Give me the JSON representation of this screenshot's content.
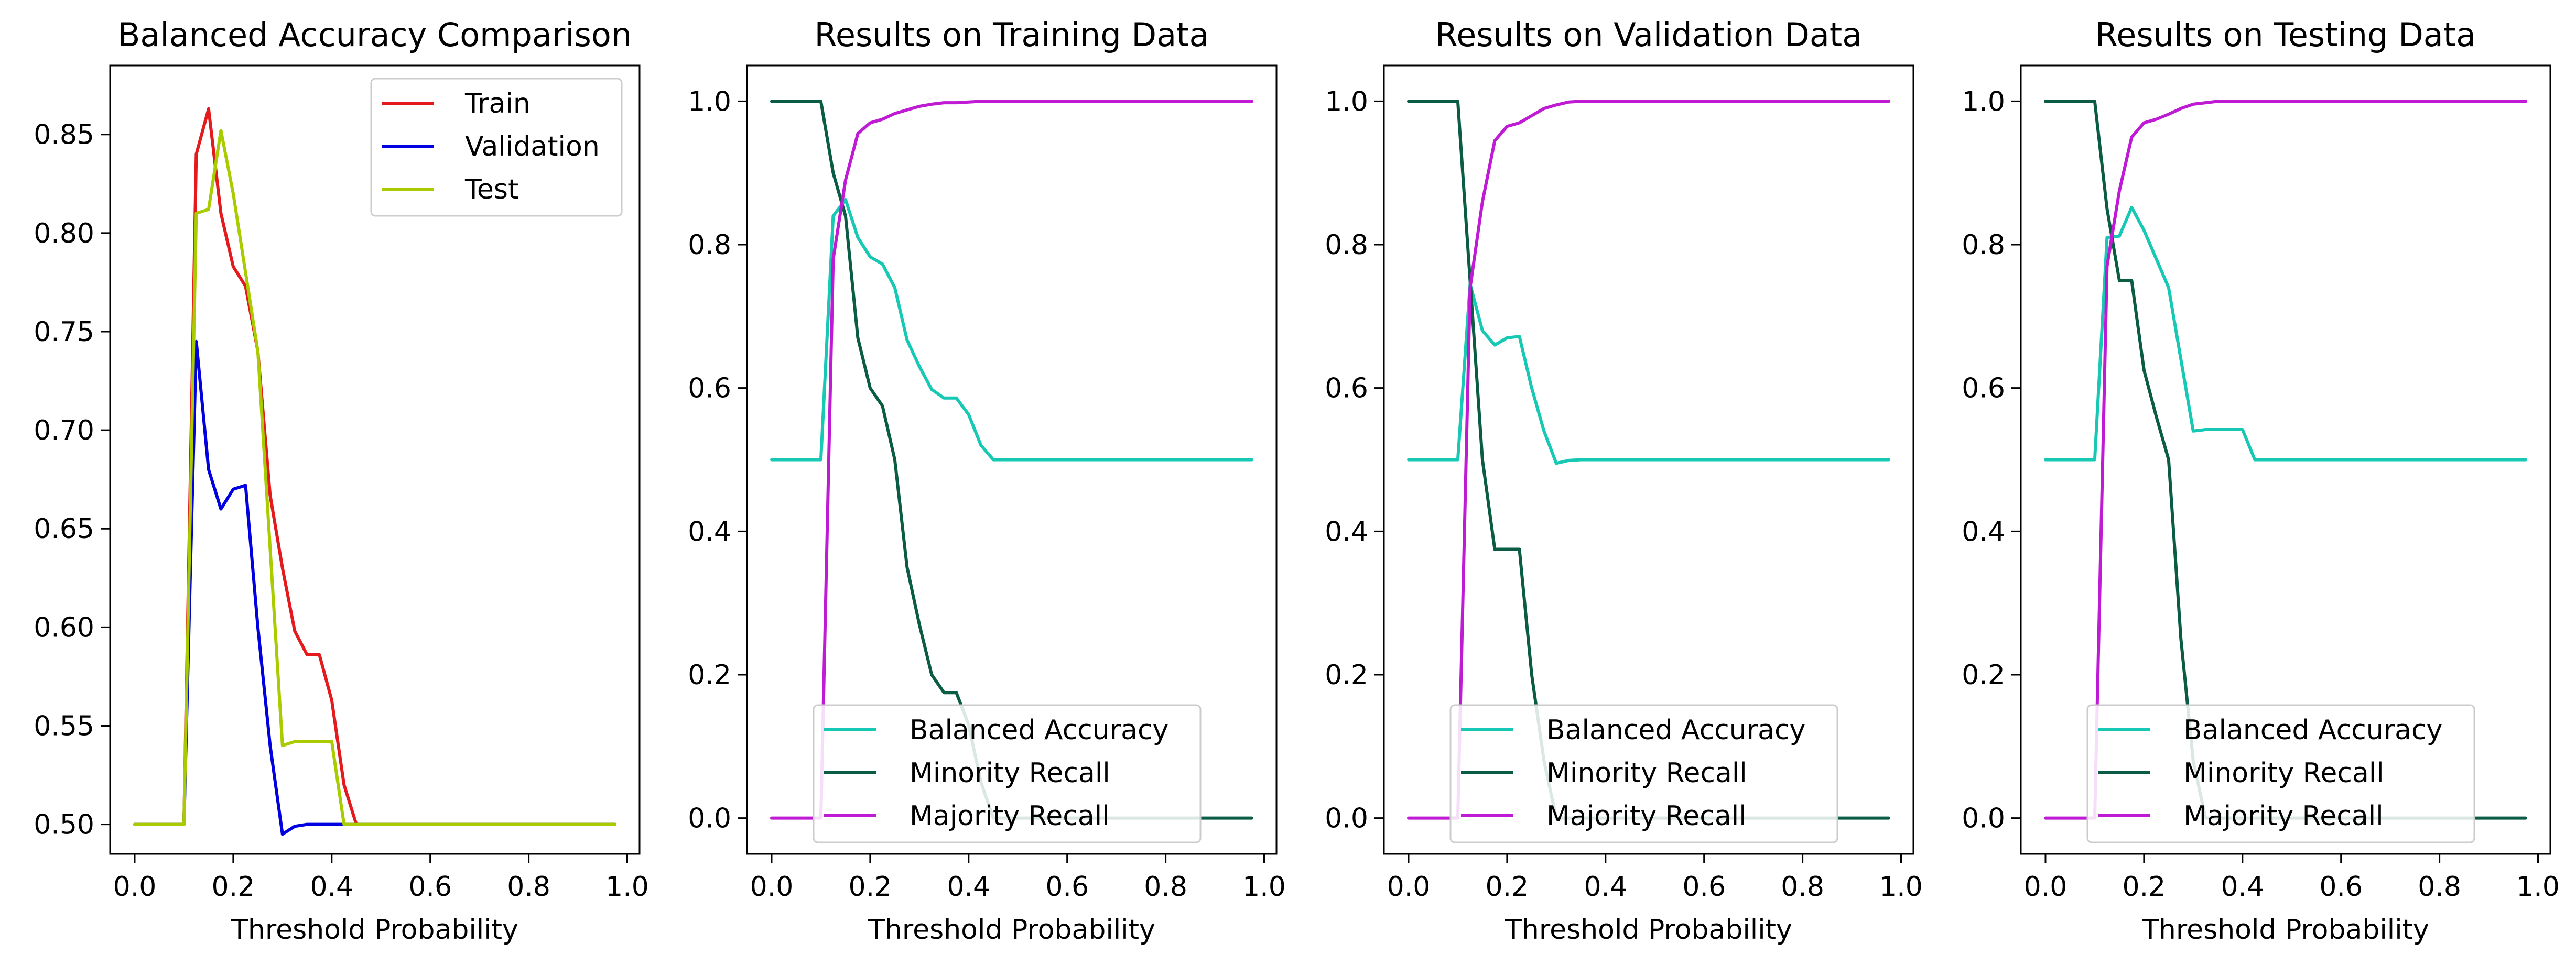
{
  "figure": {
    "background": "#ffffff"
  },
  "chart_data": [
    {
      "type": "line",
      "title": "Balanced Accuracy Comparison",
      "xlabel": "Threshold Probability",
      "ylabel": "",
      "xlim": [
        -0.05,
        1.025
      ],
      "ylim": [
        0.485,
        0.885
      ],
      "xticks": [
        0.0,
        0.2,
        0.4,
        0.6,
        0.8,
        1.0
      ],
      "xtick_labels": [
        "0.0",
        "0.2",
        "0.4",
        "0.6",
        "0.8",
        "1.0"
      ],
      "yticks": [
        0.5,
        0.55,
        0.6,
        0.65,
        0.7,
        0.75,
        0.8,
        0.85
      ],
      "ytick_labels": [
        "0.50",
        "0.55",
        "0.60",
        "0.65",
        "0.70",
        "0.75",
        "0.80",
        "0.85"
      ],
      "legend_position": "top-right",
      "grid": false,
      "series": [
        {
          "name": "Train",
          "color": "#e41a1c",
          "x": [
            0.0,
            0.1,
            0.125,
            0.15,
            0.175,
            0.2,
            0.225,
            0.25,
            0.275,
            0.3,
            0.325,
            0.35,
            0.375,
            0.4,
            0.425,
            0.45,
            0.475,
            0.5,
            0.6,
            0.7,
            0.8,
            0.9,
            0.975
          ],
          "y": [
            0.5,
            0.5,
            0.84,
            0.863,
            0.81,
            0.783,
            0.773,
            0.74,
            0.667,
            0.63,
            0.598,
            0.586,
            0.586,
            0.563,
            0.52,
            0.5,
            0.5,
            0.5,
            0.5,
            0.5,
            0.5,
            0.5,
            0.5
          ]
        },
        {
          "name": "Validation",
          "color": "#0000e0",
          "x": [
            0.0,
            0.1,
            0.125,
            0.15,
            0.175,
            0.2,
            0.225,
            0.25,
            0.275,
            0.3,
            0.325,
            0.35,
            0.375,
            0.4,
            0.425,
            0.45,
            0.475,
            0.5,
            0.6,
            0.7,
            0.8,
            0.9,
            0.975
          ],
          "y": [
            0.5,
            0.5,
            0.745,
            0.68,
            0.66,
            0.67,
            0.672,
            0.6,
            0.54,
            0.495,
            0.499,
            0.5,
            0.5,
            0.5,
            0.5,
            0.5,
            0.5,
            0.5,
            0.5,
            0.5,
            0.5,
            0.5,
            0.5
          ]
        },
        {
          "name": "Test",
          "color": "#a8cc00",
          "x": [
            0.0,
            0.1,
            0.125,
            0.15,
            0.175,
            0.2,
            0.225,
            0.25,
            0.275,
            0.3,
            0.325,
            0.35,
            0.375,
            0.4,
            0.425,
            0.45,
            0.475,
            0.5,
            0.6,
            0.7,
            0.8,
            0.9,
            0.975
          ],
          "y": [
            0.5,
            0.5,
            0.81,
            0.812,
            0.852,
            0.82,
            0.78,
            0.74,
            0.64,
            0.54,
            0.542,
            0.542,
            0.542,
            0.542,
            0.5,
            0.5,
            0.5,
            0.5,
            0.5,
            0.5,
            0.5,
            0.5,
            0.5
          ]
        }
      ]
    },
    {
      "type": "line",
      "title": "Results on Training Data",
      "xlabel": "Threshold Probability",
      "ylabel": "",
      "xlim": [
        -0.05,
        1.025
      ],
      "ylim": [
        -0.05,
        1.05
      ],
      "xticks": [
        0.0,
        0.2,
        0.4,
        0.6,
        0.8,
        1.0
      ],
      "xtick_labels": [
        "0.0",
        "0.2",
        "0.4",
        "0.6",
        "0.8",
        "1.0"
      ],
      "yticks": [
        0.0,
        0.2,
        0.4,
        0.6,
        0.8,
        1.0
      ],
      "ytick_labels": [
        "0.0",
        "0.2",
        "0.4",
        "0.6",
        "0.8",
        "1.0"
      ],
      "legend_position": "lower-right",
      "grid": false,
      "series": [
        {
          "name": "Balanced Accuracy",
          "color": "#17c9b4",
          "x": [
            0.0,
            0.1,
            0.125,
            0.15,
            0.175,
            0.2,
            0.225,
            0.25,
            0.275,
            0.3,
            0.325,
            0.35,
            0.375,
            0.4,
            0.425,
            0.45,
            0.475,
            0.5,
            0.6,
            0.7,
            0.8,
            0.9,
            0.975
          ],
          "y": [
            0.5,
            0.5,
            0.84,
            0.863,
            0.81,
            0.783,
            0.773,
            0.74,
            0.667,
            0.63,
            0.598,
            0.586,
            0.586,
            0.563,
            0.52,
            0.5,
            0.5,
            0.5,
            0.5,
            0.5,
            0.5,
            0.5,
            0.5
          ]
        },
        {
          "name": "Minority Recall",
          "color": "#0a5c44",
          "x": [
            0.0,
            0.1,
            0.125,
            0.15,
            0.175,
            0.2,
            0.225,
            0.25,
            0.275,
            0.3,
            0.325,
            0.35,
            0.375,
            0.4,
            0.425,
            0.45,
            0.475,
            0.5,
            0.6,
            0.7,
            0.8,
            0.9,
            0.975
          ],
          "y": [
            1.0,
            1.0,
            0.9,
            0.84,
            0.67,
            0.6,
            0.575,
            0.5,
            0.35,
            0.27,
            0.2,
            0.175,
            0.175,
            0.13,
            0.05,
            0.0,
            0.0,
            0.0,
            0.0,
            0.0,
            0.0,
            0.0,
            0.0
          ]
        },
        {
          "name": "Majority Recall",
          "color": "#c01bd4",
          "x": [
            0.0,
            0.1,
            0.125,
            0.15,
            0.175,
            0.2,
            0.225,
            0.25,
            0.275,
            0.3,
            0.325,
            0.35,
            0.375,
            0.4,
            0.425,
            0.45,
            0.475,
            0.5,
            0.6,
            0.7,
            0.8,
            0.9,
            0.975
          ],
          "y": [
            0.0,
            0.0,
            0.78,
            0.89,
            0.955,
            0.97,
            0.975,
            0.983,
            0.988,
            0.993,
            0.996,
            0.998,
            0.998,
            0.999,
            1.0,
            1.0,
            1.0,
            1.0,
            1.0,
            1.0,
            1.0,
            1.0,
            1.0
          ]
        }
      ]
    },
    {
      "type": "line",
      "title": "Results on Validation Data",
      "xlabel": "Threshold Probability",
      "ylabel": "",
      "xlim": [
        -0.05,
        1.025
      ],
      "ylim": [
        -0.05,
        1.05
      ],
      "xticks": [
        0.0,
        0.2,
        0.4,
        0.6,
        0.8,
        1.0
      ],
      "xtick_labels": [
        "0.0",
        "0.2",
        "0.4",
        "0.6",
        "0.8",
        "1.0"
      ],
      "yticks": [
        0.0,
        0.2,
        0.4,
        0.6,
        0.8,
        1.0
      ],
      "ytick_labels": [
        "0.0",
        "0.2",
        "0.4",
        "0.6",
        "0.8",
        "1.0"
      ],
      "legend_position": "lower-right",
      "grid": false,
      "series": [
        {
          "name": "Balanced Accuracy",
          "color": "#17c9b4",
          "x": [
            0.0,
            0.1,
            0.125,
            0.15,
            0.175,
            0.2,
            0.225,
            0.25,
            0.275,
            0.3,
            0.325,
            0.35,
            0.375,
            0.4,
            0.425,
            0.45,
            0.475,
            0.5,
            0.6,
            0.7,
            0.8,
            0.9,
            0.975
          ],
          "y": [
            0.5,
            0.5,
            0.745,
            0.68,
            0.66,
            0.67,
            0.672,
            0.6,
            0.54,
            0.495,
            0.499,
            0.5,
            0.5,
            0.5,
            0.5,
            0.5,
            0.5,
            0.5,
            0.5,
            0.5,
            0.5,
            0.5,
            0.5
          ]
        },
        {
          "name": "Minority Recall",
          "color": "#0a5c44",
          "x": [
            0.0,
            0.1,
            0.125,
            0.15,
            0.175,
            0.2,
            0.225,
            0.25,
            0.275,
            0.3,
            0.325,
            0.35,
            0.375,
            0.4,
            0.425,
            0.45,
            0.475,
            0.5,
            0.6,
            0.7,
            0.8,
            0.9,
            0.975
          ],
          "y": [
            1.0,
            1.0,
            0.75,
            0.5,
            0.375,
            0.375,
            0.375,
            0.2,
            0.08,
            0.0,
            0.0,
            0.0,
            0.0,
            0.0,
            0.0,
            0.0,
            0.0,
            0.0,
            0.0,
            0.0,
            0.0,
            0.0,
            0.0
          ]
        },
        {
          "name": "Majority Recall",
          "color": "#c01bd4",
          "x": [
            0.0,
            0.1,
            0.125,
            0.15,
            0.175,
            0.2,
            0.225,
            0.25,
            0.275,
            0.3,
            0.325,
            0.35,
            0.375,
            0.4,
            0.425,
            0.45,
            0.475,
            0.5,
            0.6,
            0.7,
            0.8,
            0.9,
            0.975
          ],
          "y": [
            0.0,
            0.0,
            0.74,
            0.86,
            0.945,
            0.965,
            0.97,
            0.98,
            0.99,
            0.995,
            0.999,
            1.0,
            1.0,
            1.0,
            1.0,
            1.0,
            1.0,
            1.0,
            1.0,
            1.0,
            1.0,
            1.0,
            1.0
          ]
        }
      ]
    },
    {
      "type": "line",
      "title": "Results on Testing Data",
      "xlabel": "Threshold Probability",
      "ylabel": "",
      "xlim": [
        -0.05,
        1.025
      ],
      "ylim": [
        -0.05,
        1.05
      ],
      "xticks": [
        0.0,
        0.2,
        0.4,
        0.6,
        0.8,
        1.0
      ],
      "xtick_labels": [
        "0.0",
        "0.2",
        "0.4",
        "0.6",
        "0.8",
        "1.0"
      ],
      "yticks": [
        0.0,
        0.2,
        0.4,
        0.6,
        0.8,
        1.0
      ],
      "ytick_labels": [
        "0.0",
        "0.2",
        "0.4",
        "0.6",
        "0.8",
        "1.0"
      ],
      "legend_position": "lower-right",
      "grid": false,
      "series": [
        {
          "name": "Balanced Accuracy",
          "color": "#17c9b4",
          "x": [
            0.0,
            0.1,
            0.125,
            0.15,
            0.175,
            0.2,
            0.225,
            0.25,
            0.275,
            0.3,
            0.325,
            0.35,
            0.375,
            0.4,
            0.425,
            0.45,
            0.475,
            0.5,
            0.6,
            0.7,
            0.8,
            0.9,
            0.975
          ],
          "y": [
            0.5,
            0.5,
            0.81,
            0.812,
            0.852,
            0.82,
            0.78,
            0.74,
            0.64,
            0.54,
            0.542,
            0.542,
            0.542,
            0.542,
            0.5,
            0.5,
            0.5,
            0.5,
            0.5,
            0.5,
            0.5,
            0.5,
            0.5
          ]
        },
        {
          "name": "Minority Recall",
          "color": "#0a5c44",
          "x": [
            0.0,
            0.1,
            0.125,
            0.15,
            0.175,
            0.2,
            0.225,
            0.25,
            0.275,
            0.3,
            0.325,
            0.35,
            0.375,
            0.4,
            0.425,
            0.45,
            0.475,
            0.5,
            0.6,
            0.7,
            0.8,
            0.9,
            0.975
          ],
          "y": [
            1.0,
            1.0,
            0.85,
            0.75,
            0.75,
            0.625,
            0.56,
            0.5,
            0.25,
            0.08,
            0.0,
            0.0,
            0.0,
            0.0,
            0.0,
            0.0,
            0.0,
            0.0,
            0.0,
            0.0,
            0.0,
            0.0,
            0.0
          ]
        },
        {
          "name": "Majority Recall",
          "color": "#c01bd4",
          "x": [
            0.0,
            0.1,
            0.125,
            0.15,
            0.175,
            0.2,
            0.225,
            0.25,
            0.275,
            0.3,
            0.325,
            0.35,
            0.375,
            0.4,
            0.425,
            0.45,
            0.475,
            0.5,
            0.6,
            0.7,
            0.8,
            0.9,
            0.975
          ],
          "y": [
            0.0,
            0.0,
            0.77,
            0.875,
            0.95,
            0.97,
            0.975,
            0.982,
            0.99,
            0.996,
            0.998,
            1.0,
            1.0,
            1.0,
            1.0,
            1.0,
            1.0,
            1.0,
            1.0,
            1.0,
            1.0,
            1.0,
            1.0
          ]
        }
      ]
    }
  ]
}
